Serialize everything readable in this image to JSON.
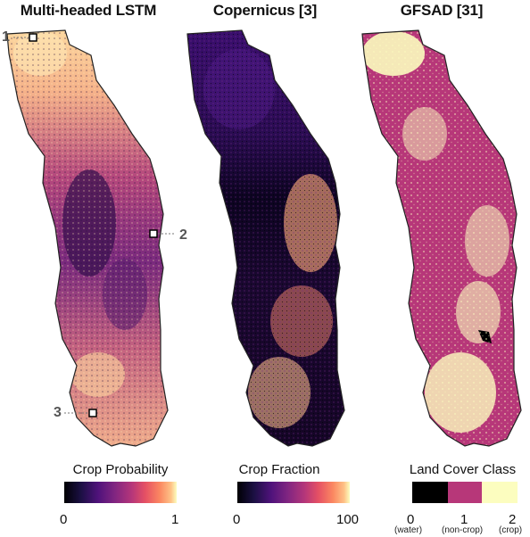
{
  "panels": [
    {
      "title": "Multi-headed LSTM",
      "legend_title": "Crop Probability",
      "ticks": [
        "0",
        "1"
      ]
    },
    {
      "title": "Copernicus [3]",
      "legend_title": "Crop Fraction",
      "ticks": [
        "0",
        "100"
      ]
    },
    {
      "title": "GFSAD [31]",
      "legend_title": "Land Cover Class",
      "classes": [
        {
          "value": "0",
          "label": "(water)",
          "color": "#000000"
        },
        {
          "value": "1",
          "label": "(non-crop)",
          "color": "#b73779"
        },
        {
          "value": "2",
          "label": "(crop)",
          "color": "#fcfdbf"
        }
      ]
    }
  ],
  "markers": [
    "1",
    "2",
    "3"
  ],
  "colormap": "magma"
}
